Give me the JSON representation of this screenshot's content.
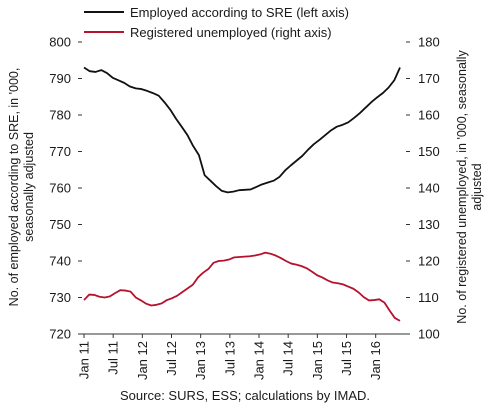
{
  "chart_data": {
    "type": "line",
    "dual_axis": true,
    "legend_position": "top",
    "grid": false,
    "x_tick_labels": [
      "Jan 11",
      "Jul 11",
      "Jan 12",
      "Jul 12",
      "Jan 13",
      "Jul 13",
      "Jan 14",
      "Jul 14",
      "Jan 15",
      "Jul 15",
      "Jan 16"
    ],
    "x_start": "2011-01",
    "x_end": "2016-06",
    "y_left": {
      "label": "No. of employed according to SRE, in '000, seasonally adjusted",
      "label_lines": [
        "No. of employed according to SRE, in '000,",
        "seasonally adjusted"
      ],
      "ylim": [
        720,
        800
      ],
      "ticks": [
        720,
        730,
        740,
        750,
        760,
        770,
        780,
        790,
        800
      ]
    },
    "y_right": {
      "label": "No. of registered unemployed, in '000, seasonally adjusted",
      "label_lines": [
        "No. of registered unemployed, in '000, seasonally",
        "adjusted"
      ],
      "ylim": [
        100,
        180
      ],
      "ticks": [
        100,
        110,
        120,
        130,
        140,
        150,
        160,
        170,
        180
      ]
    },
    "series": [
      {
        "name": "Employed according to SRE (left axis)",
        "axis": "left",
        "color": "#111111",
        "values": [
          793.0,
          792.0,
          791.8,
          792.3,
          791.5,
          790.2,
          789.5,
          788.8,
          787.8,
          787.3,
          787.1,
          786.6,
          786.0,
          785.3,
          783.5,
          781.5,
          779.0,
          776.8,
          774.5,
          771.5,
          769.0,
          763.5,
          762.0,
          760.5,
          759.2,
          758.8,
          759.0,
          759.4,
          759.5,
          759.6,
          760.3,
          761.0,
          761.5,
          762.0,
          763.0,
          764.8,
          766.2,
          767.5,
          768.8,
          770.5,
          772.0,
          773.2,
          774.5,
          775.8,
          776.8,
          777.3,
          778.0,
          779.2,
          780.5,
          782.0,
          783.5,
          784.8,
          786.0,
          787.5,
          789.5,
          793.0
        ]
      },
      {
        "name": "Registered unemployed (right axis)",
        "axis": "right",
        "color": "#b5122e",
        "values": [
          109.3,
          110.8,
          110.7,
          110.2,
          110.0,
          110.3,
          111.2,
          112.0,
          111.9,
          111.6,
          110.0,
          109.2,
          108.3,
          107.8,
          108.0,
          108.4,
          109.3,
          109.8,
          110.5,
          111.5,
          112.5,
          113.5,
          115.5,
          116.8,
          117.8,
          119.5,
          120.0,
          120.1,
          120.4,
          121.0,
          121.1,
          121.2,
          121.3,
          121.5,
          121.8,
          122.3,
          122.0,
          121.5,
          120.8,
          120.0,
          119.3,
          119.0,
          118.6,
          118.0,
          117.1,
          116.1,
          115.5,
          114.7,
          114.1,
          113.9,
          113.6,
          113.0,
          112.4,
          111.4,
          110.1,
          109.2,
          109.3,
          109.5,
          108.6,
          106.4,
          104.4,
          103.6
        ]
      }
    ],
    "source": "Source: SURS, ESS; calculations by IMAD."
  }
}
